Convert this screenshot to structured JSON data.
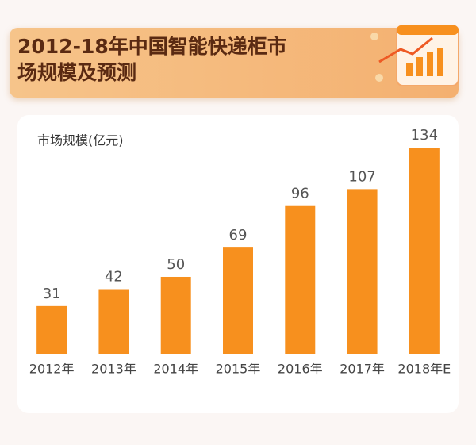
{
  "chart_data": {
    "type": "bar",
    "title": "2012-18年中国智能快递柜市场规模及预测",
    "y_label": "市场规模(亿元)",
    "categories": [
      "2012年",
      "2013年",
      "2014年",
      "2015年",
      "2016年",
      "2017年",
      "2018年E"
    ],
    "values": [
      31,
      42,
      50,
      69,
      96,
      107,
      134
    ],
    "color": "#f7901e"
  }
}
